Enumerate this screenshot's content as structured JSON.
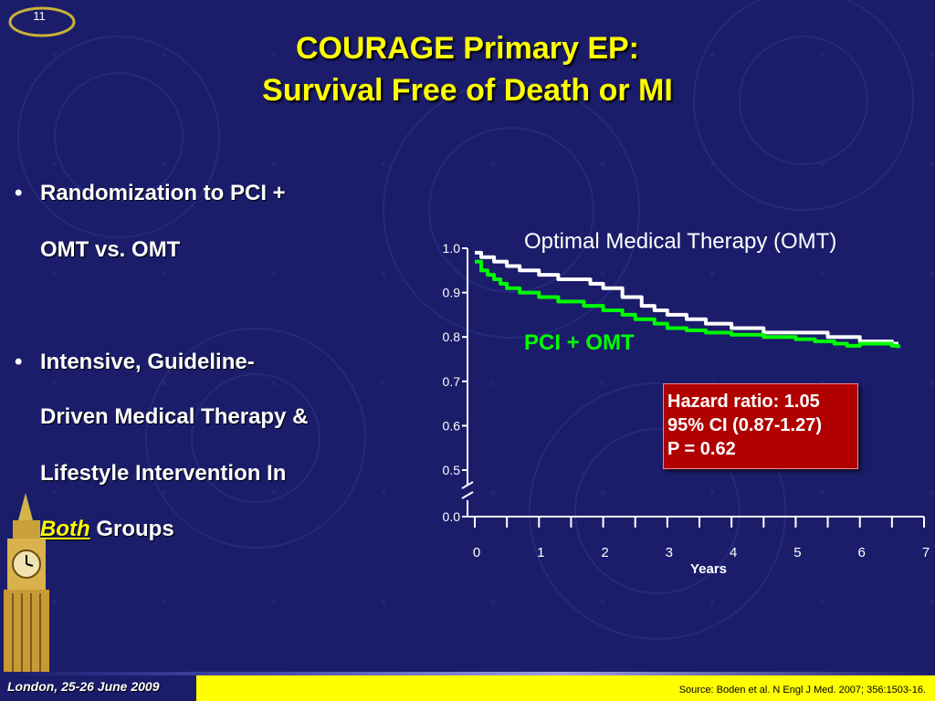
{
  "slide": {
    "number": "11"
  },
  "title": {
    "line1": "COURAGE Primary EP:",
    "line2": "Survival Free of Death or MI"
  },
  "bullets": {
    "b1_line1": "Randomization to PCI +",
    "b1_line2": "OMT vs. OMT",
    "b2_line1": "Intensive, Guideline-",
    "b2_line2": "Driven Medical Therapy &",
    "b2_line3": "Lifestyle Intervention In",
    "b2_line4_em": "Both",
    "b2_line4_rest": " Groups"
  },
  "annotation": {
    "hr": "Hazard ratio: 1.05",
    "ci": "95% CI (0.87-1.27)",
    "p": "P = 0.62"
  },
  "footer": {
    "event": "London, 25-26 June 2009",
    "source": "Source:  Boden et al. N Engl J Med. 2007; 356:1503-16."
  },
  "colors": {
    "background": "#1b1d6b",
    "title": "#ffff00",
    "omt": "#ffffff",
    "pci": "#00ff00",
    "annotation_box": "#b00000"
  },
  "chart_data": {
    "type": "line",
    "xlabel": "Years",
    "ylabel": "",
    "xlim": [
      0,
      7
    ],
    "ylim": [
      0.0,
      1.0
    ],
    "y_axis_break": "between 0.0 and 0.5",
    "x_ticks": [
      "0",
      "1",
      "2",
      "3",
      "4",
      "5",
      "6",
      "7"
    ],
    "y_ticks": [
      "0.0",
      "0.5",
      "0.6",
      "0.7",
      "0.8",
      "0.9",
      "1.0"
    ],
    "series": [
      {
        "name": "Optimal Medical Therapy (OMT)",
        "color": "#ffffff",
        "x": [
          0,
          0.1,
          0.3,
          0.5,
          0.7,
          1.0,
          1.3,
          1.5,
          1.8,
          2.0,
          2.3,
          2.6,
          2.8,
          3.0,
          3.3,
          3.6,
          4.0,
          4.5,
          5.0,
          5.5,
          6.0,
          6.5,
          6.6
        ],
        "y": [
          0.99,
          0.98,
          0.97,
          0.96,
          0.95,
          0.94,
          0.93,
          0.93,
          0.92,
          0.91,
          0.89,
          0.87,
          0.86,
          0.85,
          0.84,
          0.83,
          0.82,
          0.81,
          0.81,
          0.8,
          0.79,
          0.785,
          0.785
        ]
      },
      {
        "name": "PCI + OMT",
        "color": "#00ff00",
        "x": [
          0,
          0.1,
          0.2,
          0.3,
          0.4,
          0.5,
          0.7,
          1.0,
          1.3,
          1.5,
          1.7,
          2.0,
          2.3,
          2.5,
          2.8,
          3.0,
          3.3,
          3.6,
          4.0,
          4.5,
          5.0,
          5.3,
          5.6,
          5.8,
          6.0,
          6.5,
          6.6
        ],
        "y": [
          0.97,
          0.95,
          0.94,
          0.93,
          0.92,
          0.91,
          0.9,
          0.89,
          0.88,
          0.88,
          0.87,
          0.86,
          0.85,
          0.84,
          0.83,
          0.82,
          0.815,
          0.81,
          0.805,
          0.8,
          0.795,
          0.79,
          0.785,
          0.78,
          0.785,
          0.78,
          0.775
        ]
      }
    ]
  }
}
